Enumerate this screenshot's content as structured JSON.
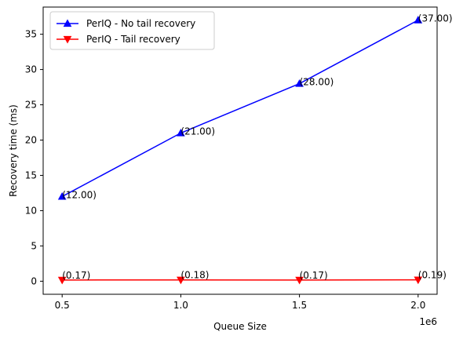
{
  "chart_data": {
    "type": "line",
    "title": "",
    "xlabel": "Queue Size",
    "ylabel": "Recovery time (ms)",
    "x_offset_label": "1e6",
    "x": [
      0.5,
      1.0,
      1.5,
      2.0
    ],
    "x_ticks": [
      "0.5",
      "1.0",
      "1.5",
      "2.0"
    ],
    "y_ticks": [
      "0",
      "5",
      "10",
      "15",
      "20",
      "25",
      "30",
      "35"
    ],
    "xlim": [
      0.42,
      2.08
    ],
    "ylim": [
      -1.85,
      38.85
    ],
    "grid": false,
    "legend_position": "top-left",
    "series": [
      {
        "name": "PerIQ - No tail recovery",
        "color": "#0000ff",
        "marker": "triangle-up",
        "values": [
          12.0,
          21.0,
          28.0,
          37.0
        ],
        "labels": [
          "(12.00)",
          "(21.00)",
          "(28.00)",
          "(37.00)"
        ]
      },
      {
        "name": "PerIQ - Tail recovery",
        "color": "#ff0000",
        "marker": "triangle-down",
        "values": [
          0.17,
          0.18,
          0.17,
          0.19
        ],
        "labels": [
          "(0.17)",
          "(0.18)",
          "(0.17)",
          "(0.19)"
        ]
      }
    ]
  }
}
